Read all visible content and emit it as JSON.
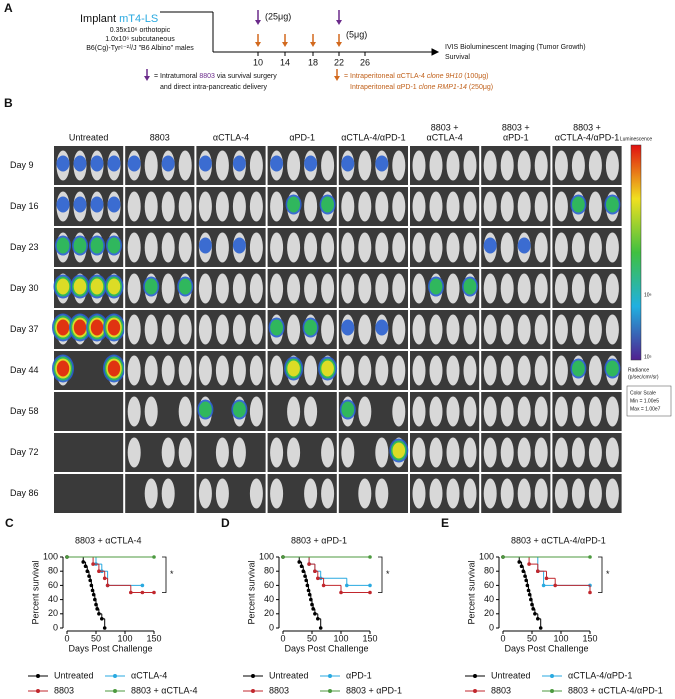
{
  "panel_a": {
    "label": "A",
    "implant": "Implant ",
    "cell_line": "mT4-LS",
    "lines": [
      "0.35x10⁶ orthotopic",
      "1.0x10⁶ subcutaneous",
      "B6(Cg)-Tyrᶜ⁻²ᴶ/J \"B6 Albino\" males"
    ],
    "days": [
      "10",
      "14",
      "18",
      "22",
      "26"
    ],
    "dose_high": "(25μg)",
    "dose_low": "(5μg)",
    "endpoints": [
      "IVIS Bioluminescent Imaging (Tumor Growth)",
      "Survival"
    ],
    "legend_purple": [
      "= Intratumoral ",
      "8803",
      " via survival surgery",
      "and direct intra-pancreatic delivery"
    ],
    "legend_orange": [
      "= Intraperitoneal αCTLA-4 ",
      "clone 9H10",
      " (100μg)",
      "Intraperitoneal αPD-1 ",
      "clone RMP1-14",
      " (250μg)"
    ]
  },
  "panel_b": {
    "label": "B",
    "columns": [
      [
        "Untreated"
      ],
      [
        "8803"
      ],
      [
        "αCTLA-4"
      ],
      [
        "αPD-1"
      ],
      [
        "αCTLA-4/αPD-1"
      ],
      [
        "8803 +",
        "αCTLA-4"
      ],
      [
        "8803 +",
        "αPD-1"
      ],
      [
        "8803 +",
        "αCTLA-4/αPD-1"
      ]
    ],
    "rows": [
      "Day 9",
      "Day 16",
      "Day 23",
      "Day 30",
      "Day 37",
      "Day 44",
      "Day 58",
      "Day 72",
      "Day 86"
    ],
    "colorbar": {
      "title": "Luminescence",
      "labels": [
        "10⁶",
        "10⁵"
      ],
      "unit": [
        "Radiance",
        "(p/sec/cm²/sr)"
      ],
      "scale": [
        "Color Scale",
        "Min = 1.00e5",
        "Max = 1.00e7"
      ]
    }
  },
  "chart_data": [
    {
      "type": "survival",
      "panel": "C",
      "title": "8803 + αCTLA-4",
      "ylabel": "Percent survival",
      "xlabel": "Days Post Challenge",
      "annotation": "*",
      "xlim": [
        0,
        150
      ],
      "xticks": [
        0,
        50,
        100,
        150
      ],
      "ylim": [
        0,
        100
      ],
      "yticks": [
        0,
        20,
        40,
        60,
        80,
        100
      ],
      "series": [
        {
          "name": "Untreated",
          "color": "#000000",
          "x": [
            0,
            28,
            32,
            35,
            38,
            40,
            42,
            44,
            46,
            48,
            50,
            52,
            55,
            60,
            65
          ],
          "values": [
            100,
            93,
            87,
            80,
            73,
            67,
            60,
            53,
            47,
            40,
            33,
            27,
            20,
            13,
            0
          ]
        },
        {
          "name": "αCTLA-4",
          "color": "#29a9e0",
          "x": [
            0,
            50,
            60,
            70,
            130
          ],
          "values": [
            100,
            90,
            80,
            60,
            60
          ]
        },
        {
          "name": "8803",
          "color": "#c1272d",
          "x": [
            0,
            45,
            55,
            65,
            70,
            110,
            130,
            150
          ],
          "values": [
            100,
            90,
            80,
            70,
            60,
            50,
            50,
            50
          ]
        },
        {
          "name": "8803 + αCTLA-4",
          "color": "#4c9a3f",
          "x": [
            0,
            150
          ],
          "values": [
            100,
            100
          ]
        }
      ]
    },
    {
      "type": "survival",
      "panel": "D",
      "title": "8803 + αPD-1",
      "ylabel": "Percent survival",
      "xlabel": "Days Post Challenge",
      "annotation": "*",
      "xlim": [
        0,
        150
      ],
      "xticks": [
        0,
        50,
        100,
        150
      ],
      "ylim": [
        0,
        100
      ],
      "yticks": [
        0,
        20,
        40,
        60,
        80,
        100
      ],
      "series": [
        {
          "name": "Untreated",
          "color": "#000000",
          "x": [
            0,
            28,
            32,
            35,
            38,
            40,
            42,
            44,
            46,
            48,
            50,
            52,
            55,
            60,
            65
          ],
          "values": [
            100,
            93,
            87,
            80,
            73,
            67,
            60,
            53,
            47,
            40,
            33,
            27,
            20,
            13,
            0
          ]
        },
        {
          "name": "αPD-1",
          "color": "#29a9e0",
          "x": [
            0,
            45,
            55,
            65,
            110,
            150
          ],
          "values": [
            100,
            90,
            80,
            70,
            60,
            60
          ]
        },
        {
          "name": "8803",
          "color": "#c1272d",
          "x": [
            0,
            45,
            55,
            60,
            70,
            100,
            150
          ],
          "values": [
            100,
            90,
            80,
            70,
            60,
            50,
            50
          ]
        },
        {
          "name": "8803 + αPD-1",
          "color": "#4c9a3f",
          "x": [
            0,
            150
          ],
          "values": [
            100,
            100
          ]
        }
      ]
    },
    {
      "type": "survival",
      "panel": "E",
      "title": "8803 + αCTLA-4/αPD-1",
      "ylabel": "Percent survival",
      "xlabel": "Days Post Challenge",
      "annotation": "*",
      "xlim": [
        0,
        150
      ],
      "xticks": [
        0,
        50,
        100,
        150
      ],
      "ylim": [
        0,
        100
      ],
      "yticks": [
        0,
        20,
        40,
        60,
        80,
        100
      ],
      "series": [
        {
          "name": "Untreated",
          "color": "#000000",
          "x": [
            0,
            28,
            32,
            35,
            38,
            40,
            42,
            44,
            46,
            48,
            50,
            52,
            55,
            60,
            65
          ],
          "values": [
            100,
            93,
            87,
            80,
            73,
            67,
            60,
            53,
            47,
            40,
            33,
            27,
            20,
            13,
            0
          ]
        },
        {
          "name": "αCTLA-4/αPD-1",
          "color": "#29a9e0",
          "x": [
            0,
            60,
            70,
            150
          ],
          "values": [
            100,
            80,
            60,
            60
          ]
        },
        {
          "name": "8803",
          "color": "#c1272d",
          "x": [
            0,
            45,
            60,
            75,
            90,
            150
          ],
          "values": [
            100,
            90,
            80,
            70,
            60,
            50
          ]
        },
        {
          "name": "8803 + αCTLA-4/αPD-1",
          "color": "#4c9a3f",
          "x": [
            0,
            150
          ],
          "values": [
            100,
            100
          ]
        }
      ]
    }
  ]
}
